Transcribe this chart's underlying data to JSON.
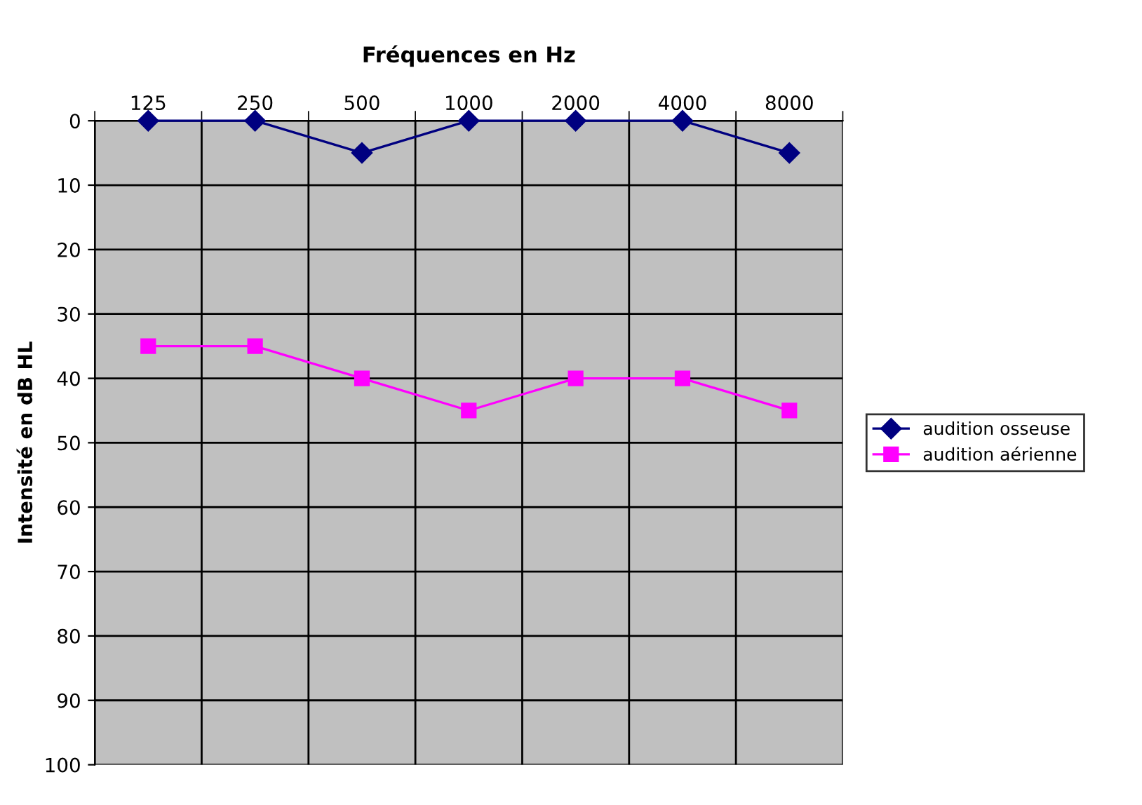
{
  "chart_data": {
    "type": "line",
    "title": "Fréquences en Hz",
    "ylabel": "Intensité en dB HL",
    "categories": [
      "125",
      "250",
      "500",
      "1000",
      "2000",
      "4000",
      "8000"
    ],
    "series": [
      {
        "name": "audition osseuse",
        "color": "#000080",
        "values": [
          0,
          0,
          5,
          0,
          0,
          0,
          5
        ],
        "marker": "diamond"
      },
      {
        "name": "audition aérienne",
        "color": "#ff00ff",
        "values": [
          35,
          35,
          40,
          45,
          40,
          40,
          45
        ],
        "marker": "square"
      }
    ],
    "ylim": [
      100,
      0
    ],
    "yticks": [
      0,
      10,
      20,
      30,
      40,
      50,
      60,
      70,
      80,
      90,
      100
    ],
    "grid": true,
    "legend": "right",
    "line_style": "solid"
  }
}
